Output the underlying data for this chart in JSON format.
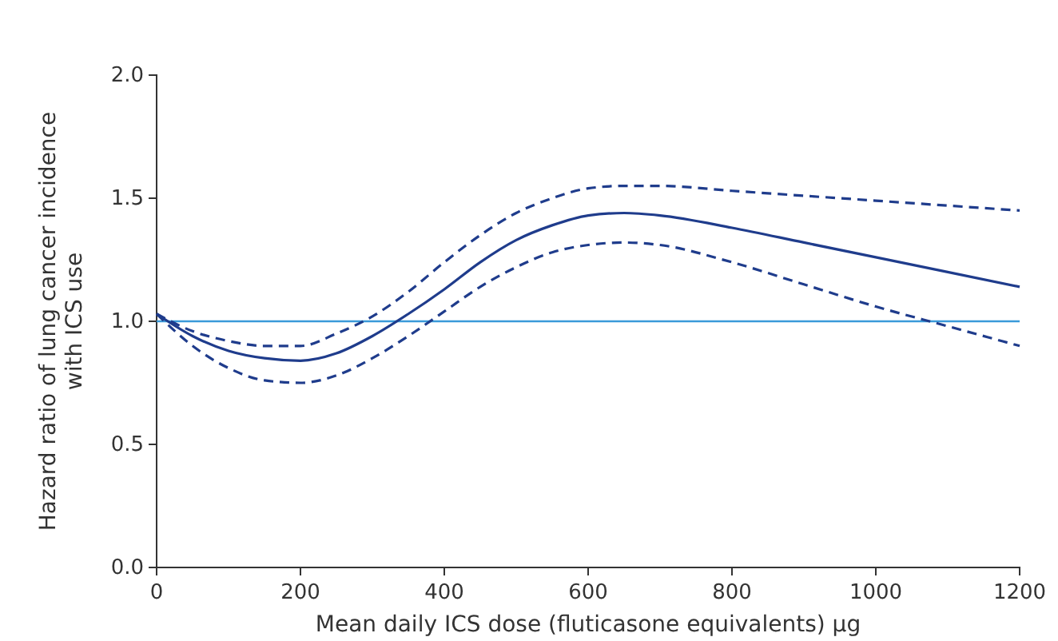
{
  "chart_data": {
    "type": "line",
    "xlabel": "Mean daily ICS dose (fluticasone equivalents) µg",
    "ylabel": "Hazard ratio of lung cancer incidence with ICS use",
    "x": [
      0,
      50,
      100,
      150,
      200,
      250,
      300,
      350,
      400,
      450,
      500,
      550,
      600,
      650,
      700,
      800,
      900,
      1000,
      1100,
      1200
    ],
    "series": [
      {
        "color": "#1f3c8c",
        "line_style": "solid",
        "values": [
          1.03,
          0.94,
          0.88,
          0.85,
          0.84,
          0.87,
          0.94,
          1.03,
          1.13,
          1.24,
          1.33,
          1.39,
          1.43,
          1.44,
          1.43,
          1.38,
          1.32,
          1.26,
          1.2,
          1.14
        ]
      },
      {
        "color": "#1f3c8c",
        "line_style": "dashed",
        "values": [
          1.03,
          0.96,
          0.92,
          0.9,
          0.9,
          0.95,
          1.02,
          1.12,
          1.24,
          1.35,
          1.44,
          1.5,
          1.54,
          1.55,
          1.55,
          1.53,
          1.51,
          1.49,
          1.47,
          1.45
        ]
      },
      {
        "color": "#1f3c8c",
        "line_style": "dashed",
        "values": [
          1.03,
          0.9,
          0.81,
          0.76,
          0.75,
          0.78,
          0.85,
          0.94,
          1.04,
          1.14,
          1.22,
          1.28,
          1.31,
          1.32,
          1.31,
          1.24,
          1.15,
          1.06,
          0.98,
          0.9
        ]
      }
    ],
    "xlim": [
      0,
      1200
    ],
    "xticks": [
      0,
      200,
      400,
      600,
      800,
      1000,
      1200
    ],
    "ylim": [
      0,
      2
    ],
    "yticks": [
      {
        "value": 0,
        "label": "0.0"
      },
      {
        "value": 0.5,
        "label": "0.5"
      },
      {
        "value": 1,
        "label": "1.0"
      },
      {
        "value": 1.5,
        "label": "1.5"
      },
      {
        "value": 2,
        "label": "2.0"
      }
    ],
    "ref_lines": [
      {
        "axis": "y",
        "value": 1,
        "label": null,
        "color": "#3a9ad9"
      }
    ],
    "grid": false,
    "marker": "none"
  }
}
